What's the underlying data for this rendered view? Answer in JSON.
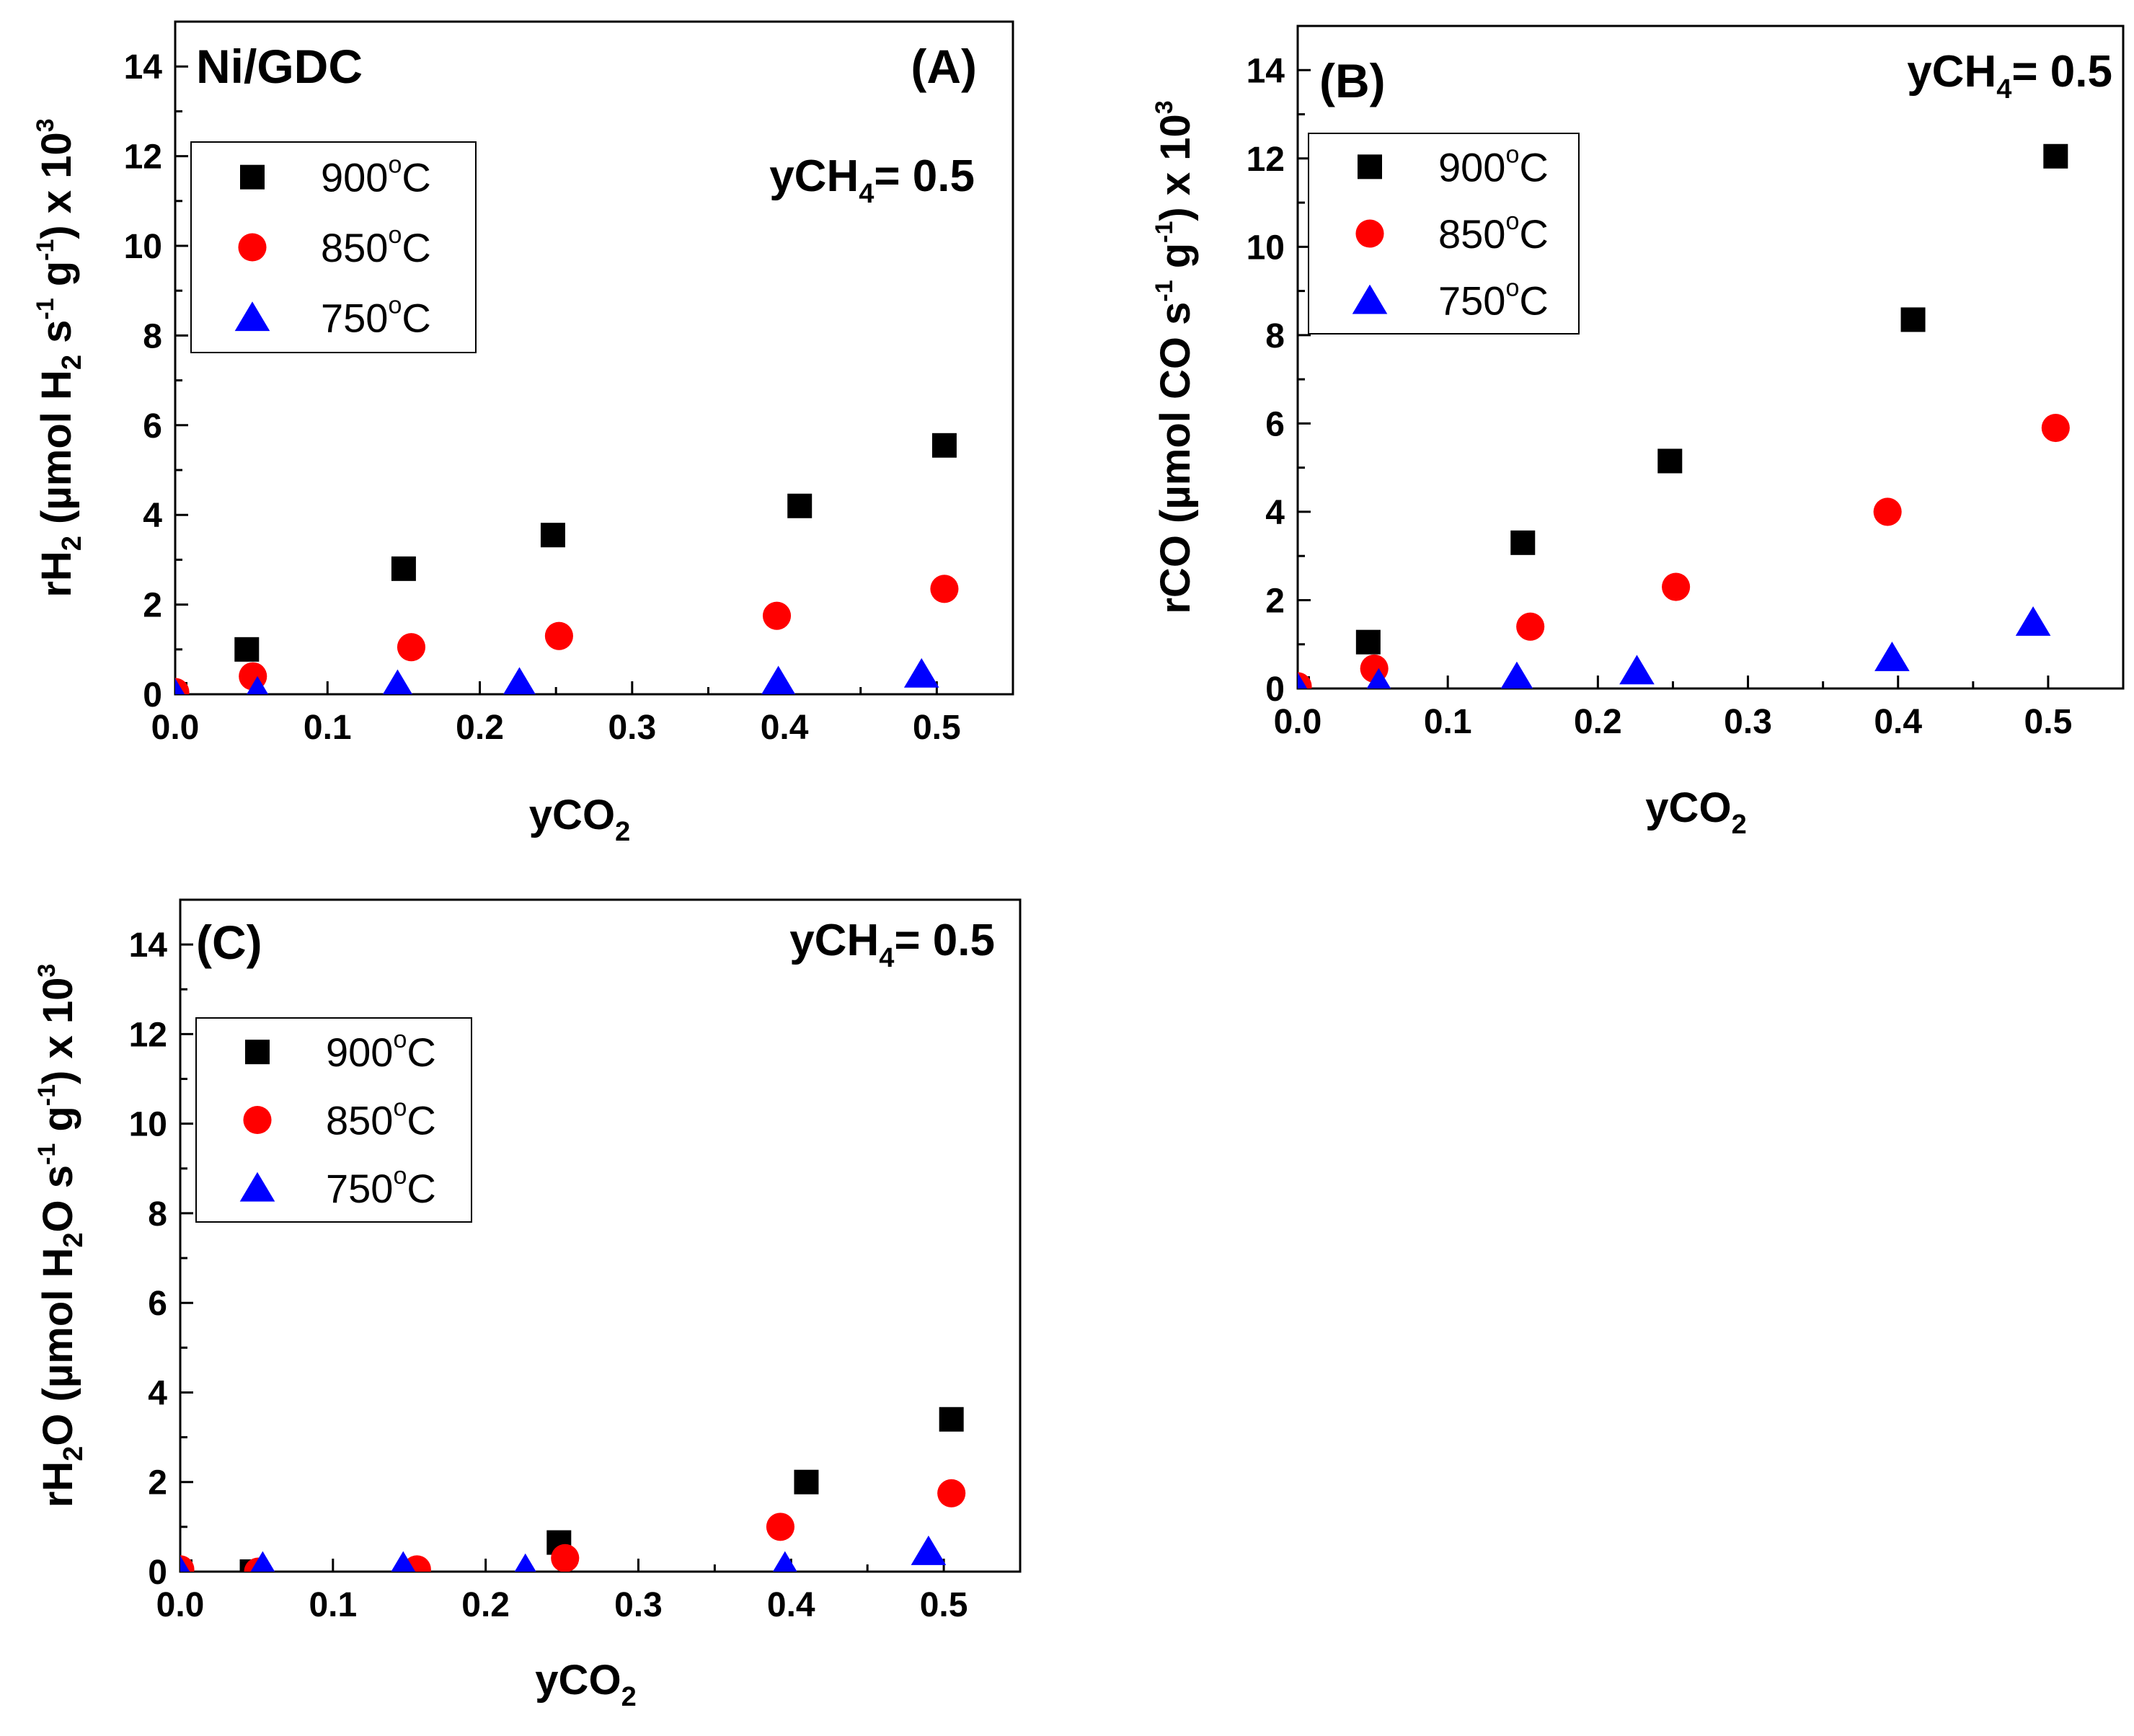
{
  "chart_data": [
    {
      "panel": "A",
      "type": "scatter",
      "panel_label": "(A)",
      "catalyst_label": "Ni/GDC",
      "annotation": {
        "main": "yCH",
        "sub": "4",
        "tail": "= 0.5"
      },
      "xlabel": {
        "main": "yCO",
        "sub": "2"
      },
      "ylabel": {
        "p1": "rH",
        "s1": "2",
        "p2": " (µmol H",
        "s2": "2",
        "p3": " s",
        "e1": "-1",
        "p4": " g",
        "e2": "-1",
        "p5": ") x 10",
        "e3": "3"
      },
      "xlim": [
        0,
        0.55
      ],
      "ylim": [
        0,
        15
      ],
      "xticks": [
        "0.0",
        "0.1",
        "0.2",
        "0.3",
        "0.4",
        "0.5"
      ],
      "yticks": [
        "0",
        "2",
        "4",
        "6",
        "8",
        "10",
        "12",
        "14"
      ],
      "legend": {
        "position": "upper-left",
        "unit_sup": "o",
        "unit_tail": "C"
      },
      "series": [
        {
          "name": "900",
          "marker": "square",
          "color": "#000000",
          "x": [
            0.0,
            0.047,
            0.15,
            0.248,
            0.41,
            0.505
          ],
          "y": [
            0.0,
            1.0,
            2.8,
            3.55,
            4.2,
            5.55
          ]
        },
        {
          "name": "850",
          "marker": "circle",
          "color": "#ff0000",
          "x": [
            0.0,
            0.051,
            0.155,
            0.252,
            0.395,
            0.505
          ],
          "y": [
            0.05,
            0.4,
            1.05,
            1.3,
            1.75,
            2.35
          ]
        },
        {
          "name": "750",
          "marker": "triangle",
          "color": "#0000ff",
          "x": [
            0.0,
            0.054,
            0.146,
            0.226,
            0.396,
            0.49
          ],
          "y": [
            0.0,
            0.05,
            0.2,
            0.25,
            0.28,
            0.45
          ]
        }
      ]
    },
    {
      "panel": "B",
      "type": "scatter",
      "panel_label": "(B)",
      "catalyst_label": "",
      "annotation": {
        "main": "yCH",
        "sub": "4",
        "tail": "= 0.5"
      },
      "xlabel": {
        "main": "yCO",
        "sub": "2"
      },
      "ylabel": {
        "p1": "rCO (µmol CO s",
        "e1": "-1",
        "p4": " g",
        "e2": "-1",
        "p5": ") x 10",
        "e3": "3"
      },
      "xlim": [
        0,
        0.55
      ],
      "ylim": [
        0,
        15
      ],
      "xticks": [
        "0.0",
        "0.1",
        "0.2",
        "0.3",
        "0.4",
        "0.5"
      ],
      "yticks": [
        "0",
        "2",
        "4",
        "6",
        "8",
        "10",
        "12",
        "14"
      ],
      "legend": {
        "position": "upper-left",
        "unit_sup": "o",
        "unit_tail": "C"
      },
      "series": [
        {
          "name": "900",
          "marker": "square",
          "color": "#000000",
          "x": [
            0.0,
            0.047,
            0.15,
            0.248,
            0.41,
            0.505
          ],
          "y": [
            0.0,
            1.05,
            3.3,
            5.15,
            8.35,
            12.05
          ]
        },
        {
          "name": "850",
          "marker": "circle",
          "color": "#ff0000",
          "x": [
            0.0,
            0.051,
            0.155,
            0.252,
            0.393,
            0.505
          ],
          "y": [
            0.05,
            0.45,
            1.4,
            2.3,
            4.0,
            5.9
          ]
        },
        {
          "name": "750",
          "marker": "triangle",
          "color": "#0000ff",
          "x": [
            0.0,
            0.054,
            0.146,
            0.226,
            0.396,
            0.49
          ],
          "y": [
            0.0,
            0.1,
            0.25,
            0.4,
            0.7,
            1.5
          ]
        }
      ]
    },
    {
      "panel": "C",
      "type": "scatter",
      "panel_label": "(C)",
      "catalyst_label": "",
      "annotation": {
        "main": "yCH",
        "sub": "4",
        "tail": "= 0.5"
      },
      "xlabel": {
        "main": "yCO",
        "sub": "2"
      },
      "ylabel": {
        "p1": "rH",
        "s1": "2",
        "p2": "O (µmol H",
        "s2": "2",
        "p3": "O s",
        "e1": "-1",
        "p4": " g",
        "e2": "-1",
        "p5": ") x 10",
        "e3": "3"
      },
      "xlim": [
        0,
        0.55
      ],
      "ylim": [
        0,
        15
      ],
      "xticks": [
        "0.0",
        "0.1",
        "0.2",
        "0.3",
        "0.4",
        "0.5"
      ],
      "yticks": [
        "0",
        "2",
        "4",
        "6",
        "8",
        "10",
        "12",
        "14"
      ],
      "legend": {
        "position": "upper-left",
        "unit_sup": "o",
        "unit_tail": "C"
      },
      "series": [
        {
          "name": "900",
          "marker": "square",
          "color": "#000000",
          "x": [
            0.0,
            0.047,
            0.248,
            0.41,
            0.505
          ],
          "y": [
            0.0,
            0.0,
            0.65,
            2.0,
            3.4
          ]
        },
        {
          "name": "850",
          "marker": "circle",
          "color": "#ff0000",
          "x": [
            0.0,
            0.051,
            0.155,
            0.252,
            0.393,
            0.505
          ],
          "y": [
            0.05,
            0.0,
            0.05,
            0.3,
            1.0,
            1.75
          ]
        },
        {
          "name": "750",
          "marker": "triangle",
          "color": "#0000ff",
          "x": [
            0.0,
            0.054,
            0.146,
            0.226,
            0.396,
            0.49
          ],
          "y": [
            0.0,
            0.1,
            0.1,
            0.05,
            0.1,
            0.45
          ]
        }
      ]
    }
  ]
}
